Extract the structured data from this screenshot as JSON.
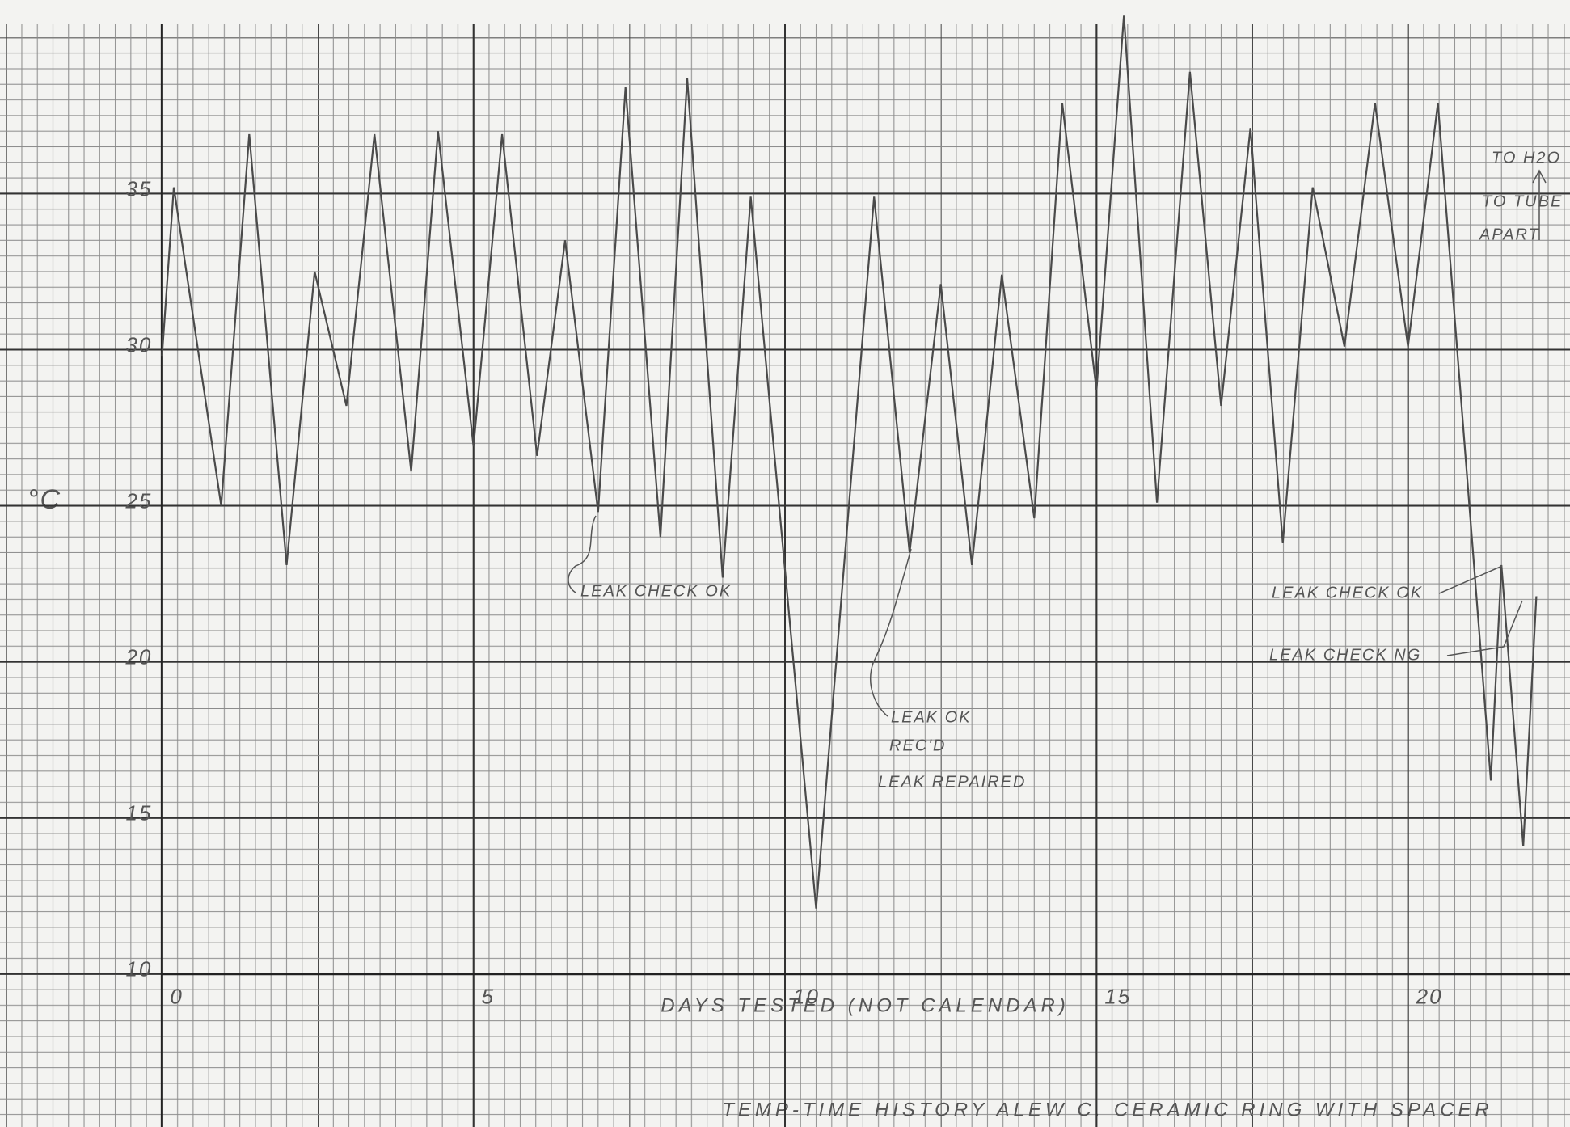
{
  "chart_data": {
    "type": "line",
    "title": "TEMP-TIME HISTORY   ALEW C. CERAMIC RING WITH SPACER",
    "x_label": "DAYS TESTED (NOT CALENDAR)",
    "y_label": "°C",
    "x": [
      0,
      0.19,
      0.95,
      1.4,
      2.0,
      2.45,
      2.96,
      3.41,
      4.0,
      4.43,
      5.0,
      5.46,
      6.02,
      6.47,
      7.0,
      7.44,
      8.0,
      8.43,
      9.0,
      9.45,
      10.5,
      11.43,
      12.0,
      12.5,
      13.0,
      13.48,
      14.0,
      14.45,
      15.0,
      15.44,
      15.97,
      16.5,
      17.0,
      17.47,
      17.99,
      18.47,
      18.98,
      19.47,
      20.0,
      20.48,
      21.33,
      21.5,
      21.85,
      22.06
    ],
    "values": [
      29.8,
      35.2,
      25.0,
      36.9,
      23.1,
      32.5,
      28.2,
      36.9,
      26.1,
      37.0,
      26.9,
      36.9,
      26.6,
      33.5,
      24.8,
      38.4,
      24.0,
      38.7,
      22.7,
      34.9,
      12.1,
      34.9,
      23.5,
      32.1,
      23.1,
      32.4,
      24.6,
      37.9,
      28.7,
      40.7,
      25.1,
      38.9,
      28.2,
      37.1,
      23.8,
      35.2,
      30.1,
      37.9,
      30.1,
      37.9,
      16.2,
      23.1,
      14.1,
      22.1
    ],
    "color": "#4a4a4a",
    "xlim": [
      -2.6,
      22.6
    ],
    "ylim": [
      5.1,
      41.2
    ],
    "xticks": [
      0,
      5,
      10,
      15,
      20
    ],
    "yticks": [
      10,
      15,
      20,
      25,
      30,
      35
    ],
    "grid": true,
    "annotations": [
      "LEAK CHECK OK",
      "LEAK OK",
      "REC'D",
      "LEAK REPAIRED",
      "LEAK CHECK OK",
      "LEAK CHECK NG",
      "TO H2O",
      "TO TUBE",
      "APART"
    ]
  }
}
